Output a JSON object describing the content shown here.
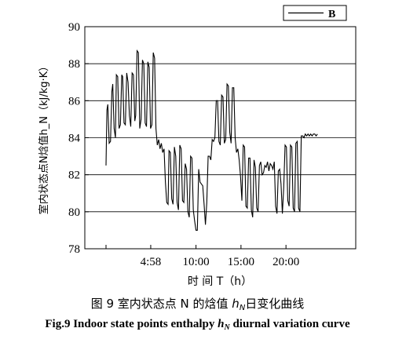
{
  "chart_data": {
    "type": "line",
    "ylabel": "室内状态点N焓值h_N（kJ/kg·K）",
    "xlabel": "时  间 T（h）",
    "ylim": [
      78,
      90
    ],
    "yticks": [
      78,
      80,
      82,
      84,
      86,
      88,
      90
    ],
    "xlim": [
      0,
      24
    ],
    "xticks": [
      {
        "value": 0,
        "label": ""
      },
      {
        "value": 4.97,
        "label": "4:58"
      },
      {
        "value": 10,
        "label": "10:00"
      },
      {
        "value": 15,
        "label": "15:00"
      },
      {
        "value": 20,
        "label": "20:00"
      }
    ],
    "grid": "horizontal",
    "legend_position": "top-right",
    "series": [
      {
        "name": "B",
        "x": [
          0.0,
          0.1,
          0.2,
          0.35,
          0.5,
          0.65,
          0.75,
          0.9,
          1.05,
          1.15,
          1.3,
          1.45,
          1.6,
          1.75,
          1.85,
          2.0,
          2.15,
          2.3,
          2.45,
          2.6,
          2.75,
          2.9,
          3.05,
          3.2,
          3.3,
          3.45,
          3.6,
          3.75,
          3.9,
          4.05,
          4.2,
          4.35,
          4.5,
          4.65,
          4.8,
          4.95,
          5.1,
          5.25,
          5.4,
          5.55,
          5.7,
          5.85,
          6.0,
          6.15,
          6.3,
          6.45,
          6.6,
          6.75,
          6.9,
          7.0,
          7.15,
          7.3,
          7.45,
          7.6,
          7.75,
          7.9,
          8.05,
          8.2,
          8.35,
          8.5,
          8.65,
          8.8,
          8.95,
          9.1,
          9.25,
          9.4,
          9.55,
          9.7,
          9.85,
          10.0,
          10.15,
          10.3,
          10.45,
          10.6,
          10.75,
          10.9,
          11.05,
          11.2,
          11.35,
          11.5,
          11.65,
          11.8,
          11.95,
          12.1,
          12.25,
          12.4,
          12.55,
          12.7,
          12.85,
          13.0,
          13.15,
          13.3,
          13.45,
          13.6,
          13.75,
          13.9,
          14.05,
          14.2,
          14.35,
          14.5,
          14.65,
          14.8,
          14.95,
          15.1,
          15.25,
          15.4,
          15.55,
          15.7,
          15.85,
          16.0,
          16.15,
          16.3,
          16.45,
          16.6,
          16.75,
          16.9,
          17.05,
          17.2,
          17.35,
          17.5,
          17.65,
          17.8,
          17.95,
          18.1,
          18.25,
          18.4,
          18.55,
          18.7,
          18.85,
          19.0,
          19.15,
          19.3,
          19.45,
          19.6,
          19.75,
          19.9,
          20.05,
          20.2,
          20.35,
          20.5,
          20.65,
          20.8,
          20.95,
          21.1,
          21.25,
          21.4,
          21.55,
          21.7,
          21.85,
          22.0,
          22.15,
          22.3,
          22.45,
          22.6,
          22.75,
          22.9,
          23.05,
          23.2,
          23.35,
          23.5
        ],
        "values": [
          82.5,
          85.5,
          85.8,
          83.7,
          83.8,
          86.5,
          86.9,
          84.5,
          84.0,
          87.4,
          87.3,
          84.5,
          84.7,
          87.4,
          87.3,
          84.8,
          84.7,
          87.5,
          87.0,
          85.2,
          84.6,
          87.5,
          87.4,
          84.9,
          85.2,
          88.7,
          88.6,
          84.5,
          85.0,
          88.2,
          88.0,
          84.8,
          84.6,
          88.1,
          87.8,
          84.5,
          84.7,
          88.6,
          88.3,
          84.5,
          83.6,
          83.9,
          83.4,
          83.7,
          83.2,
          83.4,
          81.6,
          80.5,
          80.4,
          83.3,
          83.2,
          80.7,
          80.4,
          83.5,
          83.0,
          80.5,
          80.1,
          83.6,
          83.4,
          80.6,
          80.5,
          82.6,
          82.3,
          80.0,
          79.7,
          83.0,
          82.9,
          80.1,
          79.5,
          79.0,
          79.0,
          82.3,
          81.6,
          81.5,
          81.4,
          80.4,
          79.3,
          80.5,
          83.0,
          83.0,
          82.8,
          83.9,
          83.8,
          84.0,
          86.0,
          86.0,
          83.8,
          83.6,
          86.3,
          86.2,
          83.7,
          83.9,
          86.9,
          86.8,
          84.3,
          83.7,
          86.7,
          86.7,
          84.0,
          83.2,
          83.4,
          82.8,
          81.9,
          80.6,
          83.6,
          83.5,
          80.3,
          80.2,
          82.9,
          82.9,
          80.1,
          79.7,
          82.8,
          82.4,
          80.2,
          80.0,
          82.5,
          82.7,
          82.0,
          82.1,
          82.5,
          82.4,
          82.7,
          82.2,
          82.6,
          82.5,
          82.3,
          82.7,
          80.3,
          79.9,
          82.2,
          82.3,
          81.5,
          79.9,
          81.3,
          83.6,
          83.5,
          80.6,
          80.3,
          83.6,
          83.5,
          80.2,
          80.0,
          83.7,
          83.8,
          80.2,
          80.0,
          84.1,
          84.1,
          84.0,
          84.2,
          84.1,
          84.2,
          84.1,
          84.2,
          84.1,
          84.2,
          84.2,
          84.1,
          84.2
        ]
      }
    ]
  },
  "caption_zh": {
    "prefix": "图 9    室内状态点 N 的焓值 ",
    "var": "h",
    "sub": "N",
    "suffix": "日变化曲线"
  },
  "caption_en": {
    "prefix": "Fig.9    Indoor state points enthalpy ",
    "var": "h",
    "sub": "N",
    "suffix": " diurnal variation curve"
  },
  "colors": {
    "line": "#000000",
    "grid": "#000000"
  }
}
